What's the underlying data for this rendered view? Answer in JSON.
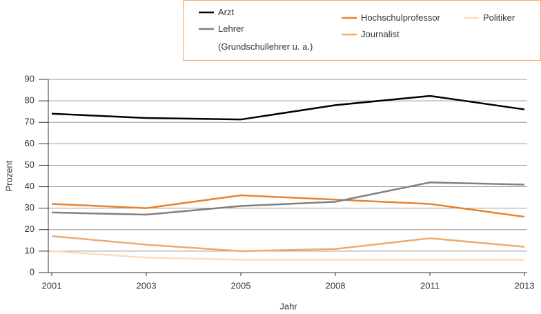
{
  "chart_data": {
    "type": "line",
    "categories": [
      "2001",
      "2003",
      "2005",
      "2008",
      "2011",
      "2013"
    ],
    "series": [
      {
        "name": "Arzt",
        "color": "#000000",
        "values": [
          74,
          72,
          71.3,
          78,
          82.3,
          76
        ]
      },
      {
        "name": "Lehrer\n(Grundschullehrer u. a.)",
        "color": "#808080",
        "values": [
          28,
          27,
          31,
          33,
          42,
          41
        ]
      },
      {
        "name": "Hochschulprofessor",
        "color": "#e8822f",
        "values": [
          32,
          30,
          36,
          34,
          32,
          26
        ]
      },
      {
        "name": "Journalist",
        "color": "#f0aa6c",
        "values": [
          17,
          13,
          10,
          11,
          16,
          12
        ]
      },
      {
        "name": "Politiker",
        "color": "#fbdcc0",
        "values": [
          10,
          7,
          6,
          6,
          6,
          6
        ]
      }
    ],
    "ylabel": "Prozent",
    "xlabel": "Jahr",
    "ylim": [
      0,
      90
    ],
    "yticks": [
      0,
      10,
      20,
      30,
      40,
      50,
      60,
      70,
      80,
      90
    ],
    "grid": true
  }
}
